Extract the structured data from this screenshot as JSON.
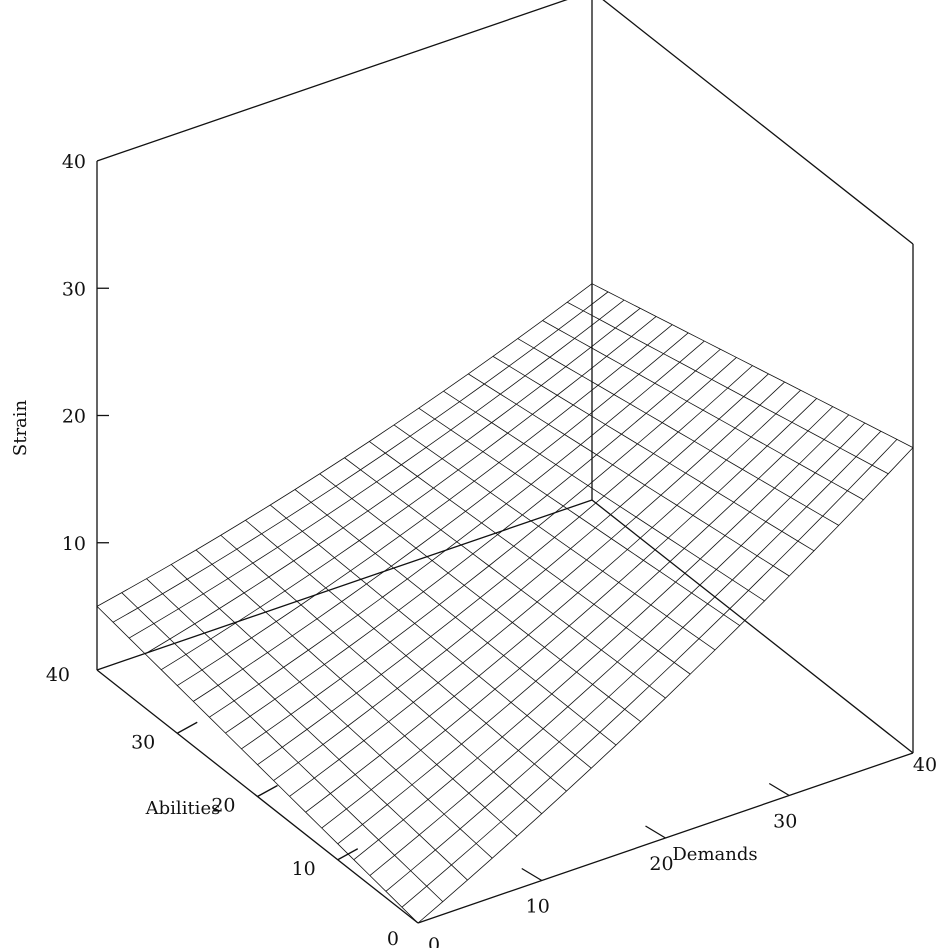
{
  "chart_data": {
    "type": "surface",
    "title": "",
    "xlabel": "Demands",
    "ylabel": "Abilities",
    "zlabel": "Strain",
    "xlim": [
      0,
      40
    ],
    "ylim": [
      0,
      40
    ],
    "zlim": [
      0,
      40
    ],
    "x_ticks": [
      "0",
      "10",
      "20",
      "30",
      "40"
    ],
    "y_ticks": [
      "0",
      "10",
      "20",
      "30",
      "40"
    ],
    "z_ticks": [
      "10",
      "20",
      "30",
      "40"
    ],
    "grid_resolution": 2,
    "surface_corners": [
      {
        "demands": 0,
        "abilities": 0,
        "strain": 0
      },
      {
        "demands": 0,
        "abilities": 40,
        "strain": 5
      },
      {
        "demands": 40,
        "abilities": 0,
        "strain": 24
      },
      {
        "demands": 40,
        "abilities": 40,
        "strain": 17
      }
    ],
    "grid": false,
    "legend": "none"
  }
}
